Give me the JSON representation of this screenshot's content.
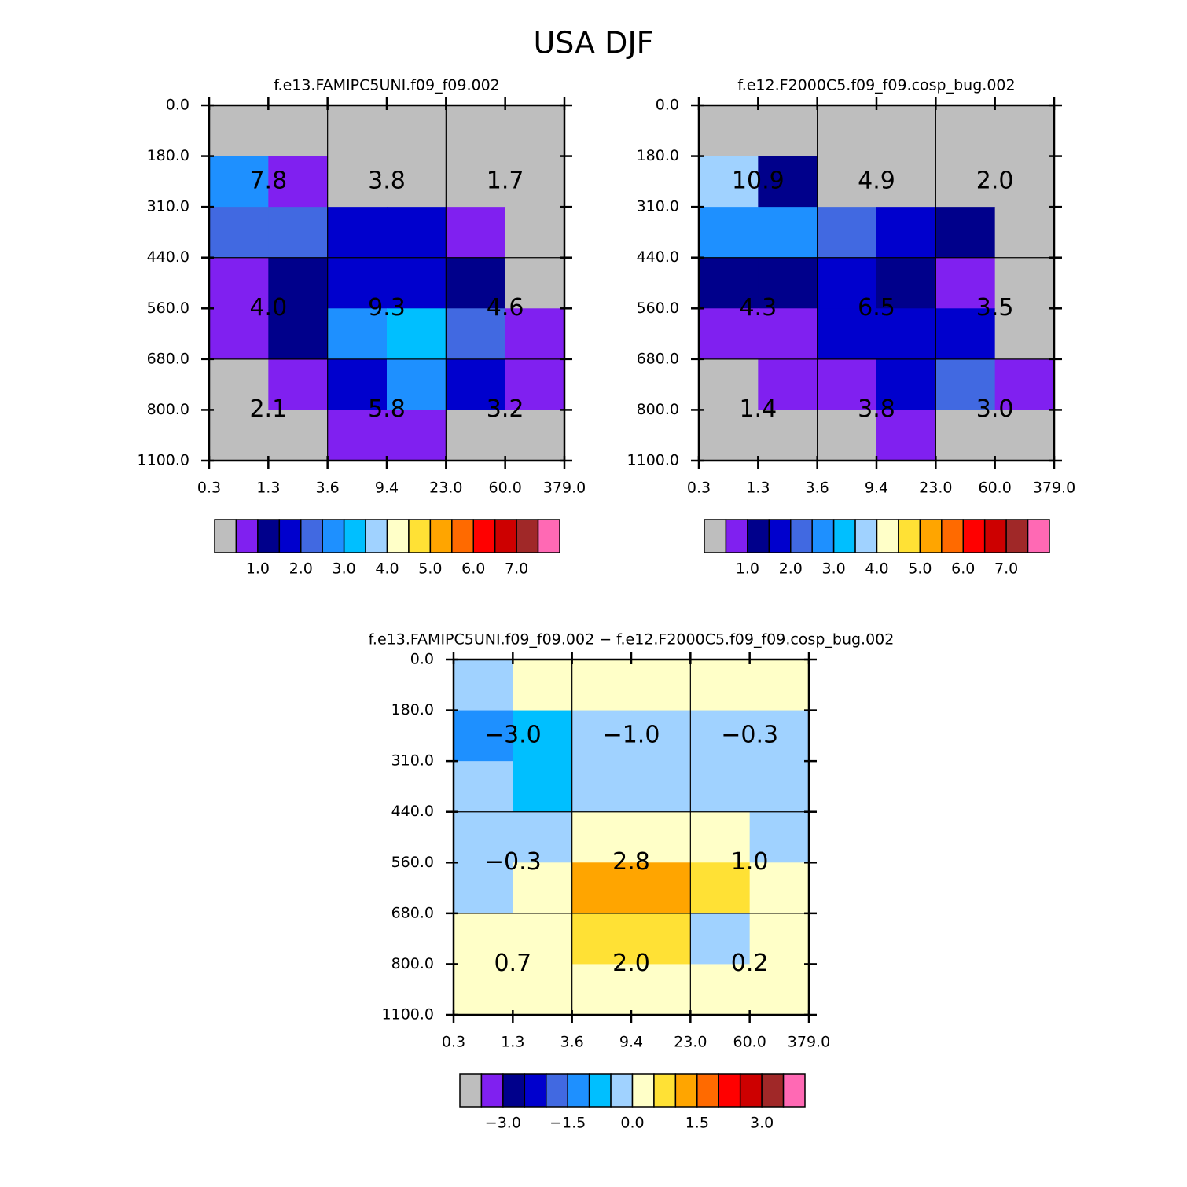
{
  "title": "USA DJF",
  "chart_data": [
    {
      "type": "heatmap",
      "title": "f.e13.FAMIPC5UNI.f09_f09.002",
      "xticks": [
        {
          "value": 0.3,
          "label": "0.3"
        },
        {
          "value": 1.3,
          "label": "1.3"
        },
        {
          "value": 3.6,
          "label": "3.6"
        },
        {
          "value": 9.4,
          "label": "9.4"
        },
        {
          "value": 23,
          "label": "23.0"
        },
        {
          "value": 60,
          "label": "60.0"
        },
        {
          "value": 379,
          "label": "379.0"
        }
      ],
      "yticks": [
        {
          "value": 0,
          "label": "0.0"
        },
        {
          "value": 180,
          "label": "180.0"
        },
        {
          "value": 310,
          "label": "310.0"
        },
        {
          "value": 440,
          "label": "440.0"
        },
        {
          "value": 560,
          "label": "560.0"
        },
        {
          "value": 680,
          "label": "680.0"
        },
        {
          "value": 800,
          "label": "800.0"
        },
        {
          "value": 1100,
          "label": "1100.0"
        }
      ],
      "values": [
        [
          0.2,
          0.2,
          0.2,
          0.2,
          0.2,
          0.2
        ],
        [
          2.8,
          0.8,
          0.2,
          0.2,
          0.2,
          0.2
        ],
        [
          2.2,
          2.2,
          1.8,
          1.8,
          0.8,
          0.2
        ],
        [
          0.8,
          1.2,
          1.8,
          1.8,
          1.2,
          0.2
        ],
        [
          0.8,
          1.2,
          2.8,
          3.2,
          2.2,
          0.8
        ],
        [
          0.2,
          0.8,
          1.8,
          2.8,
          1.8,
          0.8
        ],
        [
          0.2,
          0.2,
          0.8,
          0.8,
          0.2,
          0.2
        ]
      ],
      "annotations": {
        "values": [
          [
            7.8,
            3.8,
            1.7
          ],
          [
            4.0,
            9.3,
            4.6
          ],
          [
            2.1,
            5.8,
            3.2
          ]
        ],
        "value_labels": [
          [
            "7.8",
            "3.8",
            "1.7"
          ],
          [
            "4.0",
            "9.3",
            "4.6"
          ],
          [
            "2.1",
            "5.8",
            "3.2"
          ]
        ]
      },
      "colors": [
        "#bebebe",
        "#8020f0",
        "#00008b",
        "#0000cd",
        "#4169e1",
        "#1e90ff",
        "#00bfff",
        "#a0d2ff",
        "#ffffc8",
        "#ffe135",
        "#ffa500",
        "#ff6a00",
        "#ff0000",
        "#cd0000",
        "#a02828",
        "#ff69b4"
      ],
      "levels": [
        0.5,
        1,
        1.5,
        2,
        2.5,
        3,
        3.5,
        4,
        4.5,
        5,
        5.5,
        6,
        6.5,
        7,
        7.5
      ],
      "cbar_ticks": [
        {
          "value": 1,
          "label": "1.0"
        },
        {
          "value": 2,
          "label": "2.0"
        },
        {
          "value": 3,
          "label": "3.0"
        },
        {
          "value": 4,
          "label": "4.0"
        },
        {
          "value": 5,
          "label": "5.0"
        },
        {
          "value": 6,
          "label": "6.0"
        },
        {
          "value": 7,
          "label": "7.0"
        }
      ]
    },
    {
      "type": "heatmap",
      "title": "f.e12.F2000C5.f09_f09.cosp_bug.002",
      "xticks": [
        {
          "value": 0.3,
          "label": "0.3"
        },
        {
          "value": 1.3,
          "label": "1.3"
        },
        {
          "value": 3.6,
          "label": "3.6"
        },
        {
          "value": 9.4,
          "label": "9.4"
        },
        {
          "value": 23,
          "label": "23.0"
        },
        {
          "value": 60,
          "label": "60.0"
        },
        {
          "value": 379,
          "label": "379.0"
        }
      ],
      "yticks": [
        {
          "value": 0,
          "label": "0.0"
        },
        {
          "value": 180,
          "label": "180.0"
        },
        {
          "value": 310,
          "label": "310.0"
        },
        {
          "value": 440,
          "label": "440.0"
        },
        {
          "value": 560,
          "label": "560.0"
        },
        {
          "value": 680,
          "label": "680.0"
        },
        {
          "value": 800,
          "label": "800.0"
        },
        {
          "value": 1100,
          "label": "1100.0"
        }
      ],
      "values": [
        [
          0.2,
          0.2,
          0.2,
          0.2,
          0.2,
          0.2
        ],
        [
          3.8,
          1.2,
          0.2,
          0.2,
          0.2,
          0.2
        ],
        [
          2.8,
          2.8,
          2.2,
          1.8,
          1.2,
          0.2
        ],
        [
          1.2,
          1.2,
          1.8,
          1.2,
          0.8,
          0.2
        ],
        [
          0.8,
          0.8,
          1.8,
          1.8,
          1.8,
          0.2
        ],
        [
          0.2,
          0.8,
          0.8,
          1.8,
          2.2,
          0.8
        ],
        [
          0.2,
          0.2,
          0.2,
          0.8,
          0.2,
          0.2
        ]
      ],
      "annotations": {
        "values": [
          [
            10.9,
            4.9,
            2.0
          ],
          [
            4.3,
            6.5,
            3.5
          ],
          [
            1.4,
            3.8,
            3.0
          ]
        ],
        "value_labels": [
          [
            "10.9",
            "4.9",
            "2.0"
          ],
          [
            "4.3",
            "6.5",
            "3.5"
          ],
          [
            "1.4",
            "3.8",
            "3.0"
          ]
        ]
      },
      "colors": [
        "#bebebe",
        "#8020f0",
        "#00008b",
        "#0000cd",
        "#4169e1",
        "#1e90ff",
        "#00bfff",
        "#a0d2ff",
        "#ffffc8",
        "#ffe135",
        "#ffa500",
        "#ff6a00",
        "#ff0000",
        "#cd0000",
        "#a02828",
        "#ff69b4"
      ],
      "levels": [
        0.5,
        1,
        1.5,
        2,
        2.5,
        3,
        3.5,
        4,
        4.5,
        5,
        5.5,
        6,
        6.5,
        7,
        7.5
      ],
      "cbar_ticks": [
        {
          "value": 1,
          "label": "1.0"
        },
        {
          "value": 2,
          "label": "2.0"
        },
        {
          "value": 3,
          "label": "3.0"
        },
        {
          "value": 4,
          "label": "4.0"
        },
        {
          "value": 5,
          "label": "5.0"
        },
        {
          "value": 6,
          "label": "6.0"
        },
        {
          "value": 7,
          "label": "7.0"
        }
      ]
    },
    {
      "type": "heatmap",
      "title": "f.e13.FAMIPC5UNI.f09_f09.002 − f.e12.F2000C5.f09_f09.cosp_bug.002",
      "xticks": [
        {
          "value": 0.3,
          "label": "0.3"
        },
        {
          "value": 1.3,
          "label": "1.3"
        },
        {
          "value": 3.6,
          "label": "3.6"
        },
        {
          "value": 9.4,
          "label": "9.4"
        },
        {
          "value": 23,
          "label": "23.0"
        },
        {
          "value": 60,
          "label": "60.0"
        },
        {
          "value": 379,
          "label": "379.0"
        }
      ],
      "yticks": [
        {
          "value": 0,
          "label": "0.0"
        },
        {
          "value": 180,
          "label": "180.0"
        },
        {
          "value": 310,
          "label": "310.0"
        },
        {
          "value": 440,
          "label": "440.0"
        },
        {
          "value": 560,
          "label": "560.0"
        },
        {
          "value": 680,
          "label": "680.0"
        },
        {
          "value": 800,
          "label": "800.0"
        },
        {
          "value": 1100,
          "label": "1100.0"
        }
      ],
      "values": [
        [
          -0.2,
          0.2,
          0.2,
          0.2,
          0.2,
          0.2
        ],
        [
          -1.2,
          -0.8,
          -0.2,
          -0.2,
          -0.2,
          -0.2
        ],
        [
          -0.2,
          -0.8,
          -0.2,
          -0.2,
          -0.2,
          -0.2
        ],
        [
          -0.2,
          -0.2,
          0.2,
          0.2,
          0.2,
          -0.2
        ],
        [
          -0.2,
          0.2,
          1.2,
          1.2,
          0.8,
          0.2
        ],
        [
          0.2,
          0.2,
          0.8,
          0.8,
          -0.2,
          0.2
        ],
        [
          0.2,
          0.2,
          0.2,
          0.2,
          0.2,
          0.2
        ]
      ],
      "annotations": {
        "values": [
          [
            -3.0,
            -1.0,
            -0.3
          ],
          [
            -0.3,
            2.8,
            1.0
          ],
          [
            0.7,
            2.0,
            0.2
          ]
        ],
        "value_labels": [
          [
            "−3.0",
            "−1.0",
            "−0.3"
          ],
          [
            "−0.3",
            "2.8",
            "1.0"
          ],
          [
            "0.7",
            "2.0",
            "0.2"
          ]
        ]
      },
      "colors": [
        "#bebebe",
        "#8020f0",
        "#00008b",
        "#0000cd",
        "#4169e1",
        "#1e90ff",
        "#00bfff",
        "#a0d2ff",
        "#ffffc8",
        "#ffe135",
        "#ffa500",
        "#ff6a00",
        "#ff0000",
        "#cd0000",
        "#a02828",
        "#ff69b4"
      ],
      "levels": [
        -3.5,
        -3,
        -2.5,
        -2,
        -1.5,
        -1,
        -0.5,
        0,
        0.5,
        1,
        1.5,
        2,
        2.5,
        3,
        3.5
      ],
      "cbar_ticks": [
        {
          "value": -3,
          "label": "−3.0"
        },
        {
          "value": -1.5,
          "label": "−1.5"
        },
        {
          "value": 0,
          "label": "0.0"
        },
        {
          "value": 1.5,
          "label": "1.5"
        },
        {
          "value": 3,
          "label": "3.0"
        }
      ]
    }
  ]
}
